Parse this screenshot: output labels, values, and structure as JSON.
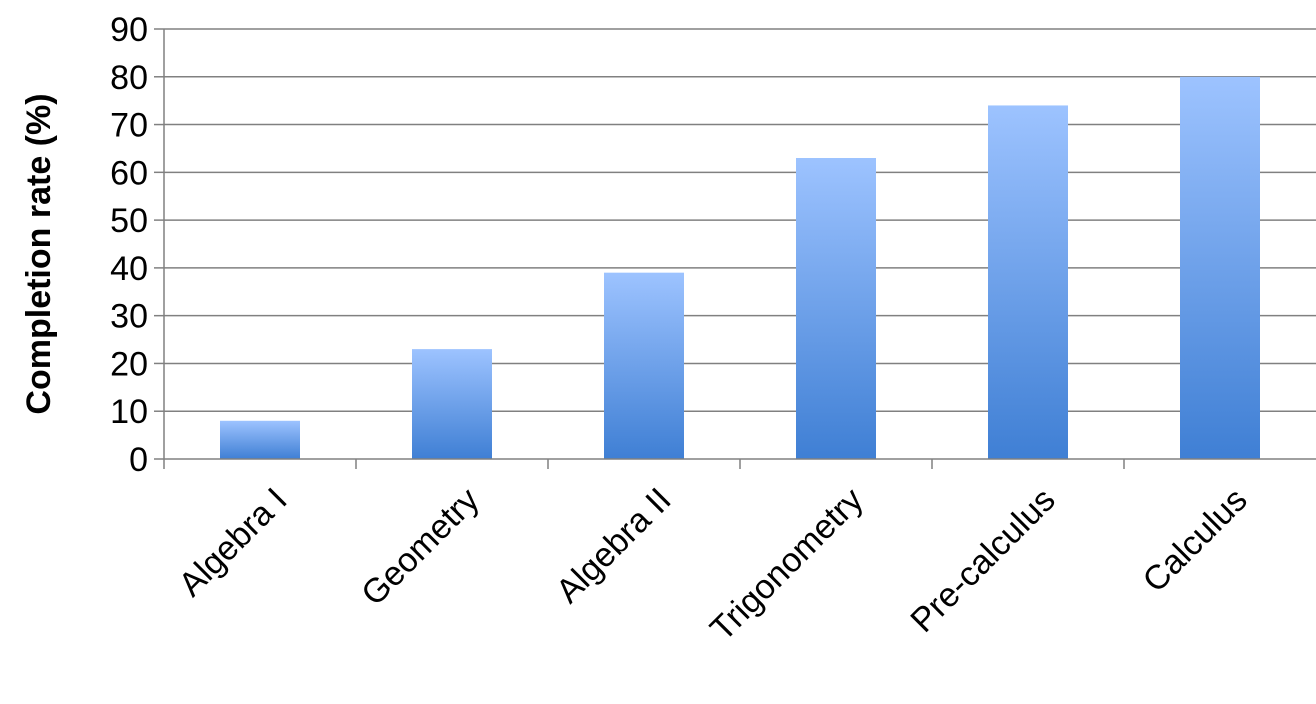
{
  "chart_data": {
    "type": "bar",
    "title": "",
    "xlabel": "",
    "ylabel": "Completion rate (%)",
    "categories": [
      "Algebra I",
      "Geometry",
      "Algebra II",
      "Trigonometry",
      "Pre-calculus",
      "Calculus"
    ],
    "values": [
      8,
      23,
      39,
      63,
      74,
      80
    ],
    "ylim": [
      0,
      90
    ],
    "yticks": [
      0,
      10,
      20,
      30,
      40,
      50,
      60,
      70,
      80,
      90
    ],
    "grid": true,
    "legend": "none",
    "colors": {
      "bar_top": "#9dc3ff",
      "bar_bottom": "#3f7fd4",
      "grid": "#808080",
      "axis": "#808080",
      "text": "#000000"
    }
  }
}
